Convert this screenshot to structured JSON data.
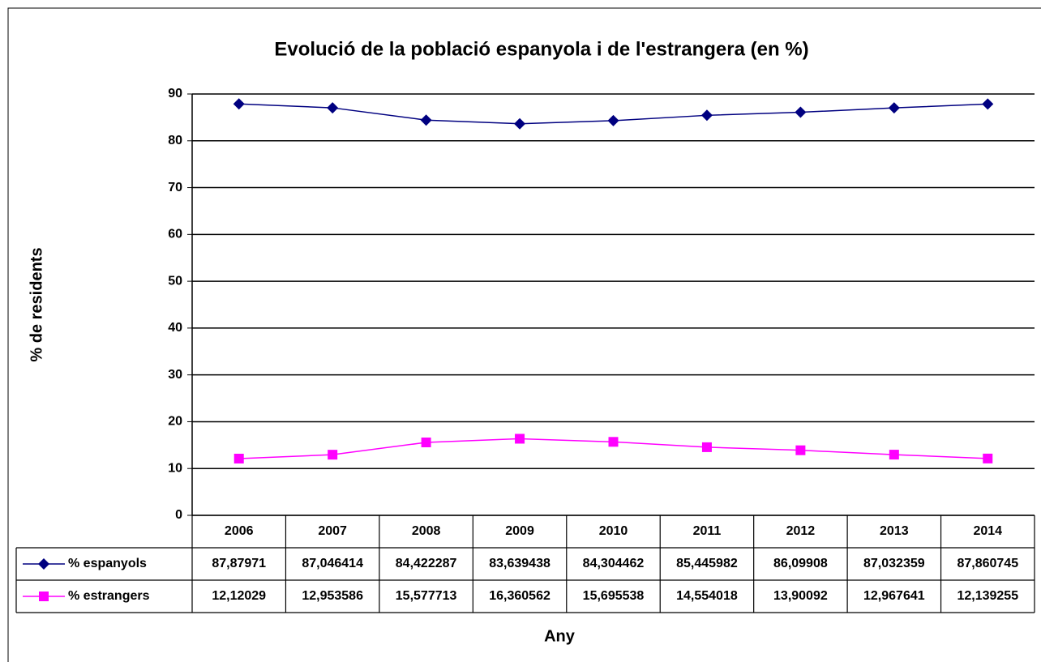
{
  "chart_data": {
    "type": "line",
    "title": "Evolució de la població espanyola i de l'estrangera (en %)",
    "x_label": "Any",
    "y_label": "% de residents",
    "categories": [
      "2006",
      "2007",
      "2008",
      "2009",
      "2010",
      "2011",
      "2012",
      "2013",
      "2014"
    ],
    "series": [
      {
        "name": "% espanyols",
        "color": "#000080",
        "marker": "diamond",
        "values": [
          87.87971,
          87.046414,
          84.422287,
          83.639438,
          84.304462,
          85.445982,
          86.09908,
          87.032359,
          87.860745
        ],
        "value_labels": [
          "87,87971",
          "87,046414",
          "84,422287",
          "83,639438",
          "84,304462",
          "85,445982",
          "86,09908",
          "87,032359",
          "87,860745"
        ]
      },
      {
        "name": "% estrangers",
        "color": "#ff00ff",
        "marker": "square",
        "values": [
          12.12029,
          12.953586,
          15.577713,
          16.360562,
          15.695538,
          14.554018,
          13.90092,
          12.967641,
          12.139255
        ],
        "value_labels": [
          "12,12029",
          "12,953586",
          "15,577713",
          "16,360562",
          "15,695538",
          "14,554018",
          "13,90092",
          "12,967641",
          "12,139255"
        ]
      }
    ],
    "ylim": [
      0,
      90
    ],
    "yticks": [
      0,
      10,
      20,
      30,
      40,
      50,
      60,
      70,
      80,
      90
    ],
    "grid": true,
    "data_table": true
  }
}
